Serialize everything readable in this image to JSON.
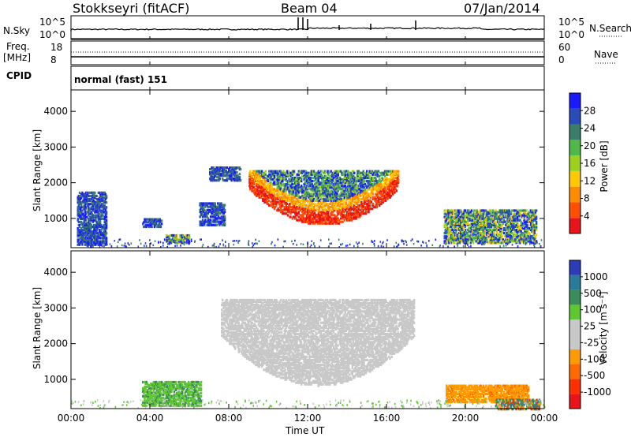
{
  "header": {
    "station": "Stokkseyri (fitACF)",
    "beam": "Beam 04",
    "date": "07/Jan/2014"
  },
  "top_panels": {
    "nsky_label": "N.Sky",
    "nsearch_label": "N.Search",
    "nsky_ticks": [
      "10^5",
      "10^0"
    ],
    "nsearch_ticks": [
      "10^5",
      "10^0"
    ],
    "freq_label_line1": "Freq.",
    "freq_label_line2": "[MHz]",
    "freq_ticks": [
      "18",
      "8"
    ],
    "nave_label": "Nave",
    "nave_ticks": [
      "60",
      "0"
    ],
    "cpid_label": "CPID",
    "cpid_value": "normal (fast) 151"
  },
  "chart_data": [
    {
      "type": "heatmap",
      "title": "",
      "xlabel": "Time UT",
      "ylabel": "Slant Range [km]",
      "x_ticks": [
        "00:00",
        "04:00",
        "08:00",
        "12:00",
        "16:00",
        "20:00",
        "00:00"
      ],
      "x_range_hours": [
        0,
        24
      ],
      "y_ticks": [
        "1000",
        "2000",
        "3000",
        "4000"
      ],
      "ylim": [
        180,
        4600
      ],
      "colorbar_label": "Power [dB]",
      "colorbar_ticks": [
        "4",
        "8",
        "12",
        "16",
        "20",
        "24",
        "28"
      ],
      "colorbar_range": [
        0,
        30
      ],
      "colors": [
        "#1a1aff",
        "#2a4cb8",
        "#3a7d6a",
        "#50b848",
        "#9cd21e",
        "#ffc800",
        "#ff8c00",
        "#ff4e00",
        "#e8141a"
      ],
      "echo_regions": [
        {
          "t": [
            9.0,
            16.6
          ],
          "r": [
            850,
            2400
          ],
          "level": "strong-core"
        },
        {
          "t": [
            0.3,
            1.8
          ],
          "r": [
            300,
            1800
          ],
          "level": "weak"
        },
        {
          "t": [
            3.6,
            4.6
          ],
          "r": [
            800,
            1050
          ],
          "level": "weak"
        },
        {
          "t": [
            4.8,
            6.0
          ],
          "r": [
            350,
            600
          ],
          "level": "moderate"
        },
        {
          "t": [
            6.5,
            7.8
          ],
          "r": [
            850,
            1500
          ],
          "level": "weak"
        },
        {
          "t": [
            7.0,
            8.6
          ],
          "r": [
            2100,
            2500
          ],
          "level": "weak"
        },
        {
          "t": [
            18.9,
            23.6
          ],
          "r": [
            350,
            1300
          ],
          "level": "moderate"
        }
      ]
    },
    {
      "type": "heatmap",
      "title": "",
      "xlabel": "Time UT",
      "ylabel": "Slant Range [km]",
      "x_ticks": [
        "00:00",
        "04:00",
        "08:00",
        "12:00",
        "16:00",
        "20:00",
        "00:00"
      ],
      "x_range_hours": [
        0,
        24
      ],
      "y_ticks": [
        "1000",
        "2000",
        "3000",
        "4000"
      ],
      "ylim": [
        180,
        4600
      ],
      "colorbar_label": "Velocity [m s⁻¹]",
      "colorbar_ticks": [
        "1000",
        "500",
        "100",
        "25",
        "-25",
        "-100",
        "-500",
        "-1000"
      ],
      "colorbar_range": [
        -1000,
        1000
      ],
      "colors": [
        "#2a3cb8",
        "#2a7a9a",
        "#3a8c5a",
        "#5ec830",
        "#c8c8c8",
        "#c8c8c8",
        "#ff9a00",
        "#ff6a00",
        "#ff3000",
        "#e8141a"
      ],
      "echo_regions": [
        {
          "t": [
            7.6,
            17.4
          ],
          "r": [
            850,
            3300
          ],
          "level": "ground-scatter"
        },
        {
          "t": [
            3.6,
            6.6
          ],
          "r": [
            300,
            1000
          ],
          "level": "positive"
        },
        {
          "t": [
            19.0,
            23.2
          ],
          "r": [
            400,
            900
          ],
          "level": "negative"
        },
        {
          "t": [
            21.5,
            23.8
          ],
          "r": [
            200,
            500
          ],
          "level": "mixed"
        }
      ]
    }
  ]
}
